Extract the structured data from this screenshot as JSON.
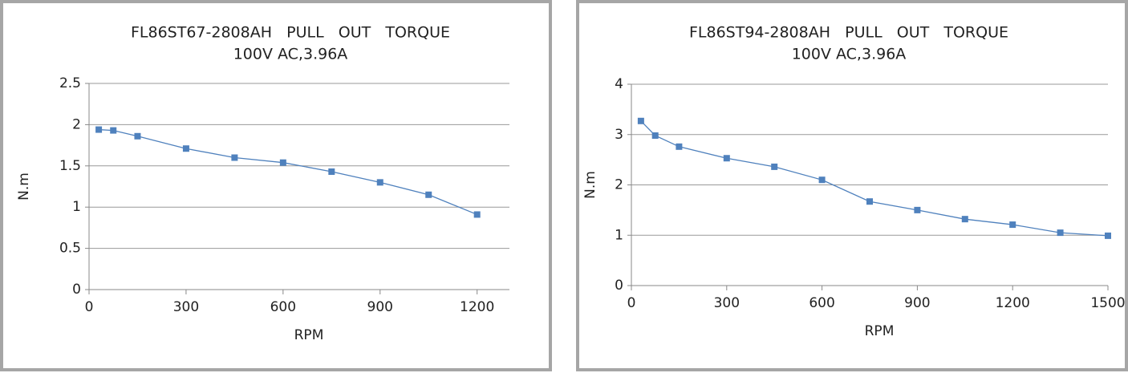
{
  "chart_data": [
    {
      "type": "line",
      "title": "FL86ST67-2808AH   PULL   OUT   TORQUE",
      "subtitle": "100V AC,3.96A",
      "x_label": "RPM",
      "y_label": "N.m",
      "x": [
        30,
        75,
        150,
        300,
        450,
        600,
        750,
        900,
        1050,
        1200
      ],
      "series": [
        {
          "color": "#4f81bd",
          "values": [
            1.94,
            1.93,
            1.86,
            1.71,
            1.6,
            1.54,
            1.43,
            1.3,
            1.15,
            0.91
          ]
        }
      ],
      "xlim": [
        0,
        1300
      ],
      "xticks": [
        0,
        300,
        600,
        900,
        1200
      ],
      "ylim": [
        0,
        2.5
      ],
      "yticks": [
        0,
        0.5,
        1,
        1.5,
        2,
        2.5
      ],
      "grid": true
    },
    {
      "type": "line",
      "title": "FL86ST94-2808AH   PULL   OUT   TORQUE",
      "subtitle": "100V AC,3.96A",
      "x_label": "RPM",
      "y_label": "N.m",
      "x": [
        30,
        75,
        150,
        300,
        450,
        600,
        750,
        900,
        1050,
        1200,
        1350,
        1500
      ],
      "series": [
        {
          "color": "#4f81bd",
          "values": [
            3.27,
            2.98,
            2.76,
            2.53,
            2.36,
            2.1,
            1.67,
            1.5,
            1.32,
            1.21,
            1.05,
            0.99
          ]
        }
      ],
      "xlim": [
        0,
        1500
      ],
      "xticks": [
        0,
        300,
        600,
        900,
        1200,
        1500
      ],
      "ylim": [
        0,
        4
      ],
      "yticks": [
        0,
        1,
        2,
        3,
        4
      ],
      "grid": true
    }
  ]
}
